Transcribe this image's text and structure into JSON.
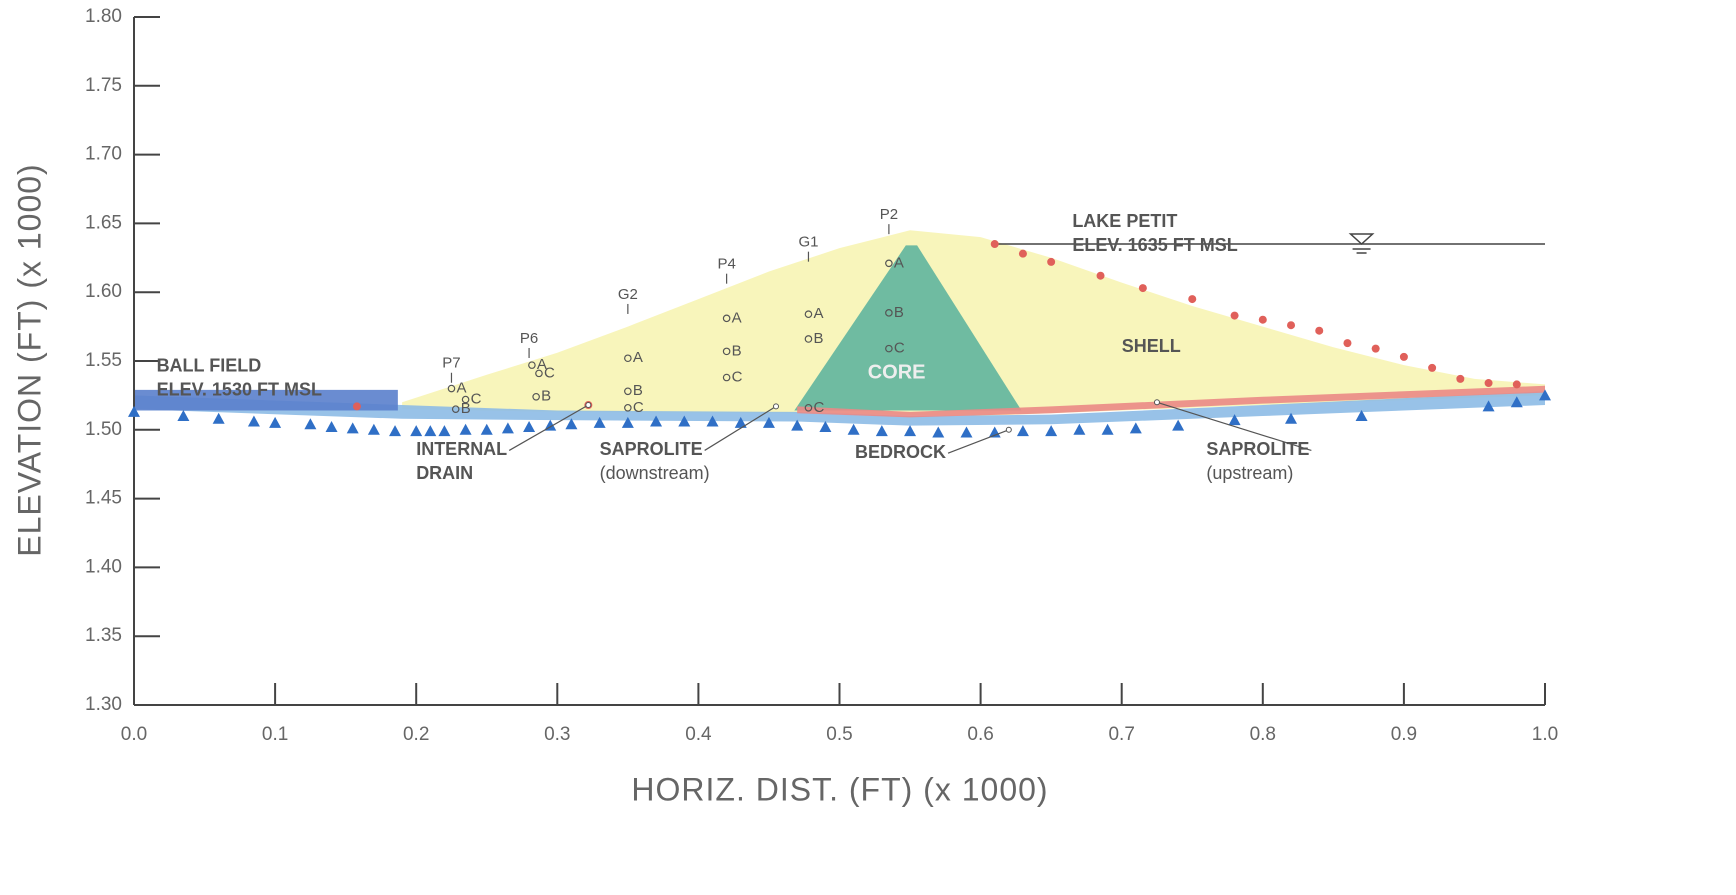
{
  "chart_data": {
    "type": "cross-section",
    "x_label": "HORIZ. DIST. (FT) (x 1000)",
    "y_label": "ELEVATION (FT) (x 1000)",
    "xlim": [
      0,
      1
    ],
    "ylim": [
      1.3,
      1.8
    ],
    "xticks": [
      {
        "value": 0,
        "label": "0.0"
      },
      0.1,
      0.2,
      0.3,
      0.4,
      0.5,
      0.6,
      0.7,
      0.8,
      0.9,
      {
        "value": 1,
        "label": "1.0"
      }
    ],
    "yticks": [
      {
        "value": 1.3,
        "label": "1.30"
      },
      1.35,
      {
        "value": 1.4,
        "label": "1.40"
      },
      1.45,
      {
        "value": 1.5,
        "label": "1.50"
      },
      1.55,
      {
        "value": 1.6,
        "label": "1.60"
      },
      1.65,
      {
        "value": 1.7,
        "label": "1.70"
      },
      1.75,
      {
        "value": 1.8,
        "label": "1.80"
      }
    ],
    "regions": [
      {
        "color": "#f7f4b4",
        "x": [
          0.19,
          0.25,
          0.3,
          0.35,
          0.4,
          0.45,
          0.5,
          0.55,
          0.6,
          0.65,
          0.7,
          0.75,
          0.8,
          0.85,
          0.9,
          0.95,
          1.0,
          1.0,
          0.8,
          0.6,
          0.47,
          0.3,
          0.19
        ],
        "y": [
          1.52,
          1.54,
          1.556,
          1.575,
          1.595,
          1.615,
          1.632,
          1.645,
          1.64,
          1.625,
          1.607,
          1.59,
          1.575,
          1.56,
          1.547,
          1.537,
          1.533,
          1.525,
          1.518,
          1.51,
          1.512,
          1.513,
          1.515
        ],
        "label": {
          "text": "SHELL",
          "x": 0.7,
          "y": 1.56
        }
      },
      {
        "color": "#5fb59e",
        "x": [
          0.468,
          0.547,
          0.555,
          0.629
        ],
        "y": [
          1.514,
          1.634,
          1.634,
          1.514
        ],
        "label": {
          "text": "CORE",
          "x": 0.52,
          "y": 1.541
        }
      },
      {
        "color": "#8dbbe6",
        "x": [
          0,
          0.19,
          0.3,
          0.47,
          0.55,
          0.65,
          0.8,
          0.9,
          1.0,
          1.0,
          0.9,
          0.8,
          0.65,
          0.55,
          0.47,
          0.3,
          0.19,
          0
        ],
        "y": [
          1.525,
          1.518,
          1.514,
          1.513,
          1.51,
          1.511,
          1.518,
          1.523,
          1.528,
          1.518,
          1.514,
          1.51,
          1.504,
          1.503,
          1.506,
          1.507,
          1.508,
          1.515
        ]
      },
      {
        "color": "#ea8a86",
        "x": [
          0.47,
          0.55,
          0.65,
          0.8,
          0.9,
          1.0,
          1.0,
          0.9,
          0.8,
          0.65,
          0.55,
          0.47
        ],
        "y": [
          1.517,
          1.513,
          1.517,
          1.524,
          1.528,
          1.532,
          1.527,
          1.523,
          1.519,
          1.512,
          1.509,
          1.512
        ]
      },
      {
        "color": "#5a7fcc",
        "x": [
          0,
          0.187,
          0.187,
          0
        ],
        "y": [
          1.529,
          1.529,
          1.514,
          1.514
        ]
      }
    ],
    "series": [
      {
        "marker": "triangle",
        "color": "#2f6fc6",
        "x": [
          0,
          0.035,
          0.06,
          0.085,
          0.1,
          0.125,
          0.14,
          0.155,
          0.17,
          0.185,
          0.2,
          0.21,
          0.22,
          0.235,
          0.25,
          0.265,
          0.28,
          0.295,
          0.31,
          0.33,
          0.35,
          0.37,
          0.39,
          0.41,
          0.43,
          0.45,
          0.47,
          0.49,
          0.51,
          0.53,
          0.55,
          0.57,
          0.59,
          0.61,
          0.63,
          0.65,
          0.67,
          0.69,
          0.71,
          0.74,
          0.78,
          0.82,
          0.87,
          0.96,
          0.98,
          1.0
        ],
        "y": [
          1.513,
          1.51,
          1.508,
          1.506,
          1.505,
          1.504,
          1.502,
          1.501,
          1.5,
          1.499,
          1.499,
          1.499,
          1.499,
          1.5,
          1.5,
          1.501,
          1.502,
          1.503,
          1.504,
          1.505,
          1.505,
          1.506,
          1.506,
          1.506,
          1.505,
          1.505,
          1.503,
          1.502,
          1.5,
          1.499,
          1.499,
          1.498,
          1.498,
          1.498,
          1.499,
          1.499,
          1.5,
          1.5,
          1.501,
          1.503,
          1.507,
          1.508,
          1.51,
          1.517,
          1.52,
          1.525
        ]
      },
      {
        "marker": "dot",
        "color": "#e0605a",
        "x": [
          0.158,
          0.322,
          0.61,
          0.63,
          0.65,
          0.685,
          0.715,
          0.75,
          0.78,
          0.8,
          0.82,
          0.84,
          0.86,
          0.88,
          0.9,
          0.92,
          0.94,
          0.96,
          0.98
        ],
        "y": [
          1.517,
          1.518,
          1.635,
          1.628,
          1.622,
          1.612,
          1.603,
          1.595,
          1.583,
          1.58,
          1.576,
          1.572,
          1.563,
          1.559,
          1.553,
          1.545,
          1.537,
          1.534,
          1.533
        ]
      }
    ],
    "instruments": [
      {
        "name": "P7",
        "x": 0.225,
        "y": 1.548,
        "sensors": [
          {
            "label": "A",
            "x": 0.225,
            "y": 1.53
          },
          {
            "label": "C",
            "x": 0.235,
            "y": 1.522
          },
          {
            "label": "B",
            "x": 0.228,
            "y": 1.515
          }
        ]
      },
      {
        "name": "P6",
        "x": 0.28,
        "y": 1.566,
        "sensors": [
          {
            "label": "A",
            "x": 0.282,
            "y": 1.547
          },
          {
            "label": "C",
            "x": 0.287,
            "y": 1.541
          },
          {
            "label": "B",
            "x": 0.285,
            "y": 1.524
          }
        ]
      },
      {
        "name": "G2",
        "x": 0.35,
        "y": 1.598,
        "sensors": [
          {
            "label": "A",
            "x": 0.35,
            "y": 1.552
          },
          {
            "label": "B",
            "x": 0.35,
            "y": 1.528
          },
          {
            "label": "C",
            "x": 0.35,
            "y": 1.516
          }
        ]
      },
      {
        "name": "P4",
        "x": 0.42,
        "y": 1.62,
        "sensors": [
          {
            "label": "A",
            "x": 0.42,
            "y": 1.581
          },
          {
            "label": "B",
            "x": 0.42,
            "y": 1.557
          },
          {
            "label": "C",
            "x": 0.42,
            "y": 1.538
          }
        ]
      },
      {
        "name": "G1",
        "x": 0.478,
        "y": 1.636,
        "sensors": [
          {
            "label": "A",
            "x": 0.478,
            "y": 1.584
          },
          {
            "label": "B",
            "x": 0.478,
            "y": 1.566
          },
          {
            "label": "C",
            "x": 0.478,
            "y": 1.516
          }
        ]
      },
      {
        "name": "P2",
        "x": 0.535,
        "y": 1.656,
        "sensors": [
          {
            "label": "A",
            "x": 0.535,
            "y": 1.621
          },
          {
            "label": "B",
            "x": 0.535,
            "y": 1.585
          },
          {
            "label": "C",
            "x": 0.535,
            "y": 1.559
          }
        ]
      }
    ],
    "water_level": {
      "x": [
        0.61,
        1.0
      ],
      "y": [
        1.635,
        1.635
      ],
      "symbol_x": 0.87
    },
    "annotations": [
      {
        "lines": [
          "LAKE PETIT",
          "ELEV. 1635 FT MSL"
        ],
        "x": 0.665,
        "y": 1.651
      },
      {
        "lines": [
          "BALL FIELD",
          "ELEV. 1530 FT MSL"
        ],
        "x": 0.016,
        "y": 1.546
      },
      {
        "lines": [
          "INTERNAL",
          "DRAIN"
        ],
        "x": 0.2,
        "y": 1.485,
        "target": [
          0.322,
          1.518
        ]
      },
      {
        "lines": [
          "SAPROLITE",
          "(downstream)"
        ],
        "x": 0.33,
        "y": 1.485,
        "target": [
          0.455,
          1.517
        ]
      },
      {
        "lines": [
          "BEDROCK"
        ],
        "x": 0.511,
        "y": 1.483,
        "target": [
          0.62,
          1.5
        ]
      },
      {
        "lines": [
          "SAPROLITE",
          "(upstream)"
        ],
        "x": 0.76,
        "y": 1.485,
        "target": [
          0.725,
          1.52
        ]
      }
    ]
  }
}
